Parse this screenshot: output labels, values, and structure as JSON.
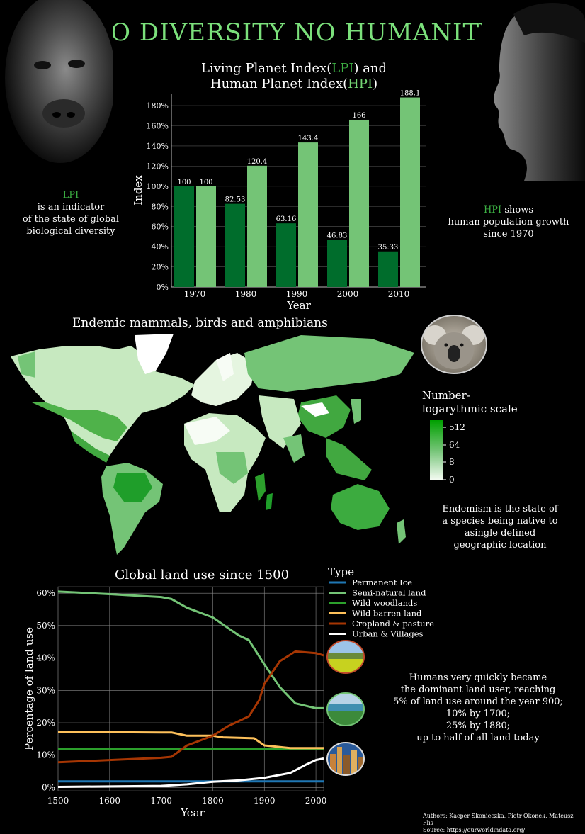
{
  "header": {
    "title": "NO DIVERSITY NO HUMANITY"
  },
  "bar_chart": {
    "title_line1_a": "Living Planet Index(",
    "title_line1_b": "LPI",
    "title_line1_c": ") and",
    "title_line2_a": "Human Planet Index(",
    "title_line2_b": "HPI",
    "title_line2_c": ")"
  },
  "lpi_note": {
    "label": "LPI",
    "line1": "is an indicator",
    "line2": "of the state of global",
    "line3": "biological diversity"
  },
  "hpi_note": {
    "label": "HPI",
    "label_suffix": " shows",
    "line2": "human population growth",
    "line3": "since 1970"
  },
  "map": {
    "title": "Endemic mammals, birds and amphibians",
    "legend_title_1": "Number-",
    "legend_title_2": "logarythmic scale",
    "legend_ticks": [
      "512",
      "64",
      "8",
      "0"
    ],
    "note": [
      "Endemism is the state of",
      "a species being native to",
      "asingle defined",
      "geographic location"
    ]
  },
  "land_note": [
    "Humans very quickly became",
    "the dominant land user, reaching",
    "5% of land use around the year 900;",
    "10% by 1700;",
    "25% by 1880;",
    "up to half of all land today"
  ],
  "credits": {
    "authors": "Authors: Kacper Skonieczka, Piotr Okonek, Mateusz Flis",
    "source": "Source: https://ourworldindata.org/"
  },
  "colors": {
    "lpi": "#006d2c",
    "hpi": "#74c476",
    "title": "#7be07b"
  },
  "chart_data": [
    {
      "type": "bar",
      "title": "Living Planet Index(LPI) and Human Planet Index(HPI)",
      "xlabel": "Year",
      "ylabel": "Index",
      "categories": [
        "1970",
        "1980",
        "1990",
        "2000",
        "2010"
      ],
      "series": [
        {
          "name": "LPI",
          "color": "#006d2c",
          "values": [
            100,
            82.53,
            63.16,
            46.83,
            35.33
          ]
        },
        {
          "name": "HPI",
          "color": "#74c476",
          "values": [
            100,
            120.4,
            143.4,
            166,
            188.1
          ]
        }
      ],
      "yticks": [
        "0%",
        "20%",
        "40%",
        "60%",
        "80%",
        "100%",
        "120%",
        "140%",
        "160%",
        "180%"
      ],
      "ylim": [
        0,
        192
      ],
      "grid": true
    },
    {
      "type": "line",
      "title": "Global land use since 1500",
      "xlabel": "Year",
      "ylabel": "Percentage of land use",
      "legend_title": "Type",
      "legend_position": "top-right",
      "xlim": [
        1500,
        2015
      ],
      "ylim": [
        -1,
        62
      ],
      "xticks": [
        "1500",
        "1600",
        "1700",
        "1800",
        "1900",
        "2000"
      ],
      "yticks": [
        "0%",
        "10%",
        "20%",
        "30%",
        "40%",
        "50%",
        "60%"
      ],
      "grid": true,
      "series": [
        {
          "name": "Permanent Ice",
          "color": "#1f77b4",
          "points": [
            [
              1500,
              1.9
            ],
            [
              2015,
              1.9
            ]
          ]
        },
        {
          "name": "Semi-natural land",
          "color": "#74c476",
          "points": [
            [
              1500,
              60.5
            ],
            [
              1600,
              59.7
            ],
            [
              1700,
              58.8
            ],
            [
              1720,
              58.2
            ],
            [
              1750,
              55.5
            ],
            [
              1800,
              52.5
            ],
            [
              1850,
              47
            ],
            [
              1870,
              45.5
            ],
            [
              1900,
              38
            ],
            [
              1930,
              31
            ],
            [
              1960,
              26
            ],
            [
              2000,
              24.5
            ],
            [
              2015,
              24.5
            ]
          ]
        },
        {
          "name": "Wild woodlands",
          "color": "#2ca02c",
          "points": [
            [
              1500,
              12
            ],
            [
              1700,
              12
            ],
            [
              1900,
              11.8
            ],
            [
              2015,
              11.8
            ]
          ]
        },
        {
          "name": "Wild barren land",
          "color": "#fdc05a",
          "points": [
            [
              1500,
              17.2
            ],
            [
              1700,
              17
            ],
            [
              1720,
              17
            ],
            [
              1750,
              16
            ],
            [
              1800,
              16
            ],
            [
              1820,
              15.5
            ],
            [
              1880,
              15.2
            ],
            [
              1900,
              13
            ],
            [
              1950,
              12.2
            ],
            [
              2015,
              12.2
            ]
          ]
        },
        {
          "name": "Cropland & pasture",
          "color": "#a63603",
          "points": [
            [
              1500,
              7.8
            ],
            [
              1600,
              8.5
            ],
            [
              1700,
              9.2
            ],
            [
              1720,
              9.5
            ],
            [
              1750,
              13
            ],
            [
              1800,
              16
            ],
            [
              1830,
              19
            ],
            [
              1870,
              22
            ],
            [
              1890,
              27
            ],
            [
              1900,
              32
            ],
            [
              1930,
              39
            ],
            [
              1960,
              42
            ],
            [
              2000,
              41.5
            ],
            [
              2015,
              40.8
            ]
          ]
        },
        {
          "name": "Urban & Villages",
          "color": "#ffffff",
          "points": [
            [
              1500,
              0.2
            ],
            [
              1700,
              0.5
            ],
            [
              1750,
              1
            ],
            [
              1800,
              1.8
            ],
            [
              1850,
              2.2
            ],
            [
              1900,
              3
            ],
            [
              1950,
              4.5
            ],
            [
              1980,
              7
            ],
            [
              2000,
              8.5
            ],
            [
              2015,
              9
            ]
          ]
        }
      ]
    }
  ]
}
